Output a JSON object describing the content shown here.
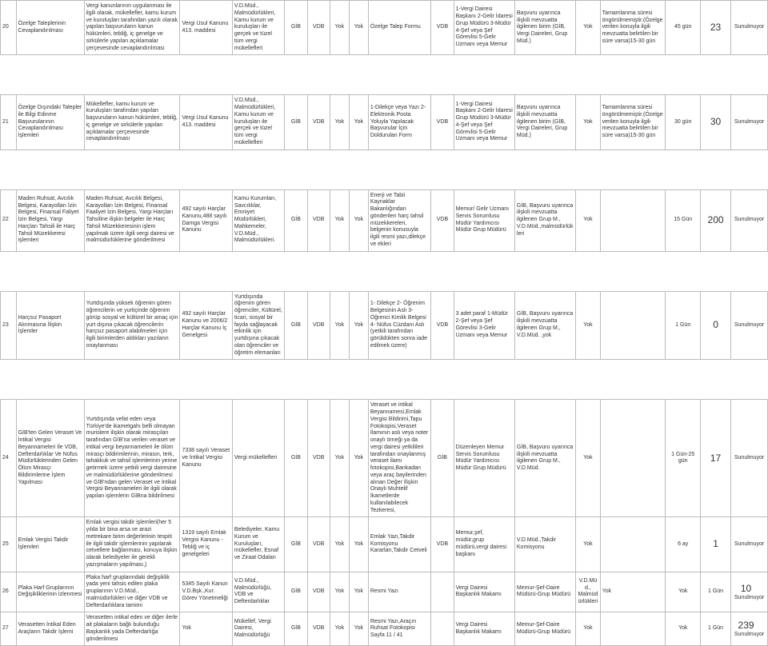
{
  "rows": [
    {
      "no": "20",
      "name": "Özelge Taleplerinin Cevaplandırılması",
      "desc": "Vergi kanunlarının uygulanması ile ilgili olarak, mükellefler, kamu kurum ve kuruluşları tarafından yazılı olarak yapılan başvuruların kanun hükümleri, tebliğ, iç genelge ve sirkülerle yapılan açıklamalar çerçevesinde cevaplandırılması",
      "law": "Vergi Usul Kanunu 413. maddesi",
      "who": "V.D.Müd., Malmüdürlükleri, Kamu kurum ve kuruluşları ile gerçek ve tüzel tüm vergi mükellefleri",
      "gib": "GİB",
      "vdb": "VDB",
      "yok1": "Yok",
      "yok2": "Yok",
      "doc": "Özelge Talep Formu",
      "auth": "VDB",
      "unit": "1-Vergi Dairesi Başkanı 2-Gelir İdaresi Grup Müdürü 3-Müdür 4-Şef veya Şef Görevlisi 5-Gelir Uzmanı veya Memur",
      "info": "Başvuru uyarınca ilişkili mevzuatta ilgilenen birim (GİB, Vergi Daireleri, Grup Müd.)",
      "yok3": "Yok",
      "dur": "Tamamlanma süresi öngörülmemiştir.(Özelge verilen konuyla ilgili mevzuatta belirtilen bir süre varsa)15-30 gün",
      "days": "45 gün",
      "big": "23",
      "last": "Sunulmuyor"
    },
    {
      "no": "21",
      "name": "Özelge Dışındaki Talepler ile Bilgi Edinme Başvurularının Cevaplandırılması İşlemleri",
      "desc": "Mükellefler, kamu kurum ve kuruluşları tarafından yapılan başvuruların kanun hükümleri, tebliğ, iç genelge ve sirkülerle yapılan açıklamalar çerçevesinde cevaplandırılması",
      "law": "Vergi Usul Kanunu 413. maddesi",
      "who": "V.D.Müd., Malmüdürlükleri, Kamu kurum ve kuruluşları ile gerçek ve tüzel tüm vergi mükellefleri",
      "gib": "GİB",
      "vdb": "VDB",
      "yok1": "Yok",
      "yok2": "Yok",
      "doc": "1-Dilekçe veya Yazı 2- Elektronik Posta Yoluyla Yapılacak Başvurular İçin Doldurulan Form",
      "auth": "VDB",
      "unit": "1-Vergi Dairesi Başkanı 2-Gelir İdaresi Grup Müdürü 3-Müdür 4-Şef veya Şef Görevlisi 5-Gelir Uzmanı veya Memur",
      "info": "Başvuru uyarınca ilişkili mevzuatta ilgilenen birim (GİB, Vergi Daireleri, Grup Müd.)",
      "yok3": "Yok",
      "dur": "Tamamlanma süresi öngörülmemiştir.(Özelge verilen konuyla ilgili mevzuatta belirtilen bir süre varsa)15-30 gün",
      "days": "30 gün",
      "big": "30",
      "last": "Sunulmuyor"
    },
    {
      "no": "22",
      "name": "Maden Ruhsat, Avcılık Belgesi, Karayolları İzin Belgesi, Finansal Faliyet İzin Belgesi, Yargı Harçları Tahsili ile Harç Tahsil Müzekkeresi işlemleri",
      "desc": "Maden Ruhsat, Avcılık Belgesi, Karayolları İzin Belgesi, Finansal Faaliyet İzin Belgesi, Yargı Harçları Tahsiline ilişkin belgeler ile Harç Tahsil Müzekkeresinin işlem yapılmak üzere ilgili vergi dairesi ve malmüdürlüklerine gönderilmesi",
      "law": "492 sayılı Harçlar Kanunu,488 sayılı Damga Vergisi Kanunu",
      "who": "Kamu Kurumları, Savcılıklar, Emniyet Müdürlükleri, Mahkemeler, V.D.Müd., Malmüdürlükleri.",
      "gib": "GİB",
      "vdb": "VDB",
      "yok1": "Yok",
      "yok2": "Yok",
      "doc": "Enerji ve Tabii Kaynaklar Bakanlığından gönderilen harç tahsil müzekkereleri, belgenin konusuyla ilgili resmi yazı,dilekçe ve ekleri",
      "auth": "VDB",
      "unit": "Memur/ Gelir Uzmanı Servis Sorumlusu Müdür Yardımcısı Müdür Grup Müdürü",
      "info": "GİB, Başvuru uyarınca ilişkili mevzuatta ilgilenen Grup M., V.D.Müd.,malmüdürlükleri",
      "yok3": "Yok",
      "dur": "",
      "days": "15 Gün",
      "big": "200",
      "last": "Sunulmuyor"
    },
    {
      "no": "23",
      "name": "Harçsız Pasaport Alınmasına İlişkin İşlemler",
      "desc": "Yurtdışında yüksek öğrenim gören öğrencilerin ve yurtiçinde öğrenim görüp sosyal ve kültürel bir amaç için yurt dışına çıkacak öğrencilerin harçsız pasaport alabilmeleri için ilgili birimlerden aldıkları yazıların onaylanması",
      "law": "492 sayılı Harçlar Kanunu ve 2006/2 Harçlar Kanunu İç Genelgesi",
      "who": "Yurtdışında öğrenim gören öğrenciler, Kültürel, ticari, sosyal bir fayda sağlayacak etkinlik için yurtdışına çıkacak olan öğrenciler ve öğretim elemanları",
      "gib": "GİB",
      "vdb": "VDB",
      "yok1": "Yok",
      "yok2": "Yok",
      "doc": "1- Dilekçe 2- Öğrenim Belgesinin Aslı 3- Öğrenci Kimlik Belgesi 4- Nüfus Cüzdanı Aslı (yetkili tarafından görüldükten sonra iade edilmek üzere)",
      "auth": "VDB",
      "unit": "3 adet paraf 1-Müdür 2-Şef veya Şef Görevlisi 3-Gelir Uzmanı veya Memur",
      "info": "GİB, Başvuru uyarınca ilişkili mevzuatta ilgilenen Grup M., V.D.Müd. ,yok",
      "yok3": "Yok",
      "dur": "",
      "days": "1 Gün",
      "big": "0",
      "last": "Sunulmuyor"
    },
    {
      "no": "24",
      "name": "GİB'ten Gelen Veraset Ve İntikal Vergisi Beyannameleri İle VDB, Defterdarlıklar Ve Nüfus Müdürlüklerinden Gelen Ölüm Mirasçı Bildirimlerine İşlem Yapılması",
      "desc": "Yurtdışında vefat eden veya Türkiye'de ikametgahı belli olmayan murislere ilişkin olarak mirasçıları tarafından GİB'na verilen veraset ve intikal vergi beyannameleri ile ölüm mirasçı bildirimlerinin, mirasın, terk, tahakkuk ve tahsil işlemlerinin yerine getirmek üzere yetkili vergi dairesine ve malmüdürlüklerine gönderilmesi ve GİB'ndan gelen Veraset ve İntikal Vergisi Beyannameleri ile ilgili olarak yapılan işlemlerin GİBna bildirilmesi",
      "law": "7338 sayılı Veraset ve İntikal Vergisi Kanunu",
      "who": "Vergi mükellefleri",
      "gib": "GİB",
      "vdb": "VDB",
      "yok1": "Yok",
      "yok2": "Yok",
      "doc": "Veraset ve intikal Beyannamesi,Emlak Vergisi Bildirimi,Tapu Fotokopisi,Veraset İlamının aslı veya noter onaylı örneği ya da vergi dairesi yetkilileri tarafından onaylanmış veraset ilamı fotokopisi,Bankadan veya araç bayilerinden alınan Değer İlişkin Onaylı Muhtelif İkametlerde kullanılabilecek Tezkeresi,",
      "auth": "GİB",
      "unit": "Düzenleyen Memur Servis Sorumlusu Müdür Yardımcısı Müdür Grup Müdürü",
      "info": "GİB, Başvuru uyarınca ilişkili mevzuatta ilgilenen Grup M., V.D.Müd.",
      "yok3": "Yok",
      "dur": "",
      "days": "1 Gün-25 gün",
      "big": "17",
      "last": "Sunulmuyor"
    },
    {
      "no": "25",
      "name": "Emlak Vergisi Takdir İşlemleri",
      "desc": "Emlak vergisi takdir işlemleri(her 5 yılda bir bina arsa ve arazi metrekare birim değerlerinin tespiti ile ilgili takdir işlemlerinin yapılarak cetvellere bağlanması, konuya ilişkin olarak belediyeler ile gerekli yazışmaların yapılması,)",
      "law": "1319 sayılı Emlak Vergisi Kanunu -Tebliğ ve iç genelgeleri",
      "who": "Belediyeler, Kamu Kurum ve Kuruluşları, mükellefler, Esnaf ve Ziraat Odaları",
      "gib": "GİB",
      "vdb": "VDB",
      "yok1": "Yok",
      "yok2": "Yok",
      "doc": "Emlak Yazı,Takdir Komisyonu Kararları,Takdir Cetveli",
      "auth": "VDB",
      "unit": "Memur,şef, müdür,grup müdürü,vergi dairesi başkanı",
      "info": "V.D.Müd.,Takdir Komisyonu",
      "yok3": "Yok",
      "dur": "",
      "days": "6 ay",
      "big": "1",
      "last": "Sunulmuyor"
    },
    {
      "no": "26",
      "name": "Plaka Harf Gruplarının Değişikliklerinin İzlenmesi",
      "desc": "Plaka harf gruplarındaki değişiklik yada yeni tahsis edilen plaka gruplarının V.D.Müd., malmüdürlükleri ve diğer VDB ve Defterdarlıklara tamimi",
      "law": "5345 Sayılı Kanun V.D.Bşk.,Kur. Görev Yönetmeliği",
      "who": "V.D.Müd., Malmüdürlüğü, VDB ve Defterdarlıklar",
      "gib": "GİB",
      "vdb": "VDB",
      "yok1": "Yok",
      "yok2": "Yok",
      "doc": "Resmi Yazı",
      "auth": "",
      "unit": "Vergi Dairesi Başkanlık Makamı",
      "info": "Memur-Şef-Daire Müdürü-Grup Müdürü",
      "yok3": "V.D.Müd., Malmüdürlükleri",
      "dur": "Yok",
      "days": "Yok",
      "big": "1 Gün",
      "biglabel": "10",
      "last": "Sunulmuyor"
    },
    {
      "no": "27",
      "name": "Verasetten İntikal Eden Araçların Takdir İşlemi",
      "desc": "Verasetten intikal eden ve diğer ilerle ait plakaların bağlı bulunduğu Başkanlık yada Defterdarlığa gönderilmesi",
      "law": "Yok",
      "who": "Mükellef, Vergi Dairesi, Malmüdürlüğü",
      "gib": "GİB",
      "vdb": "VDB",
      "yok1": "Yok",
      "yok2": "Yok",
      "doc": "Resmi Yazı,Araçın Ruhsat Fotokopisi Sayfa 11 / 41",
      "auth": "",
      "unit": "Vergi Dairesi Başkanlık Makamı",
      "info": "Memur-Şef-Daire Müdürü-Grup Müdürü",
      "yok3": "Yok",
      "dur": "",
      "days": "Yok",
      "big": "1 Gün",
      "biglabel": "239",
      "last": "Sunulmuyor"
    }
  ]
}
